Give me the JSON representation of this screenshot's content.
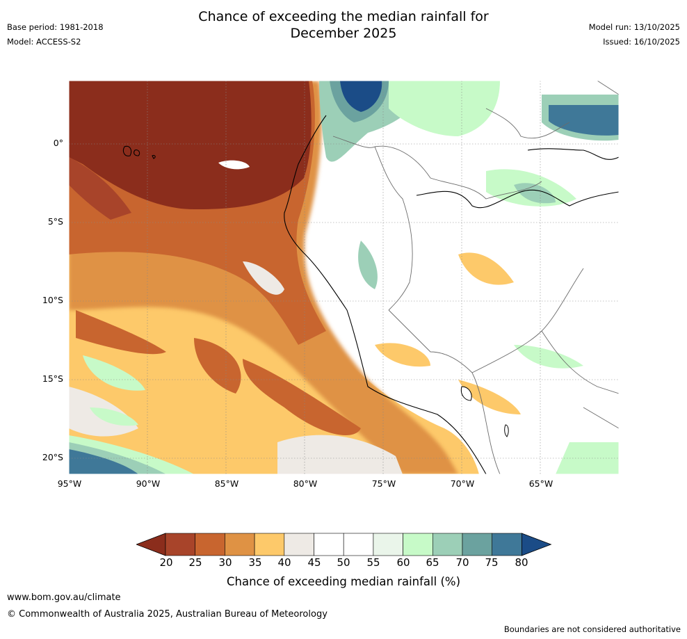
{
  "header": {
    "title_line1": "Chance of exceeding the median rainfall for",
    "title_line2": "December 2025",
    "base_period": "Base period: 1981-2018",
    "model": "Model: ACCESS-S2",
    "model_run": "Model run: 13/10/2025",
    "issued": "Issued: 16/10/2025"
  },
  "map": {
    "lat_ticks": [
      "0°",
      "5°S",
      "10°S",
      "15°S",
      "20°S"
    ],
    "lon_ticks": [
      "95°W",
      "90°W",
      "85°W",
      "80°W",
      "75°W",
      "70°W",
      "65°W"
    ]
  },
  "colorbar": {
    "labels": [
      "20",
      "25",
      "30",
      "35",
      "40",
      "45",
      "50",
      "55",
      "60",
      "65",
      "70",
      "75",
      "80"
    ],
    "colors": [
      "#8b2d1c",
      "#a8442a",
      "#c8652f",
      "#df9244",
      "#fdc96a",
      "#eeeae5",
      "#ffffff",
      "#ffffff",
      "#eaf5ea",
      "#c7fac8",
      "#9ccfb7",
      "#6ba29f",
      "#3f7898",
      "#1b4c87"
    ],
    "title": "Chance of exceeding median rainfall (%)"
  },
  "footer": {
    "url": "www.bom.gov.au/climate",
    "copyright": "© Commonwealth of Australia 2025, Australian Bureau of Meteorology",
    "disclaimer": "Boundaries are not considered authoritative"
  }
}
